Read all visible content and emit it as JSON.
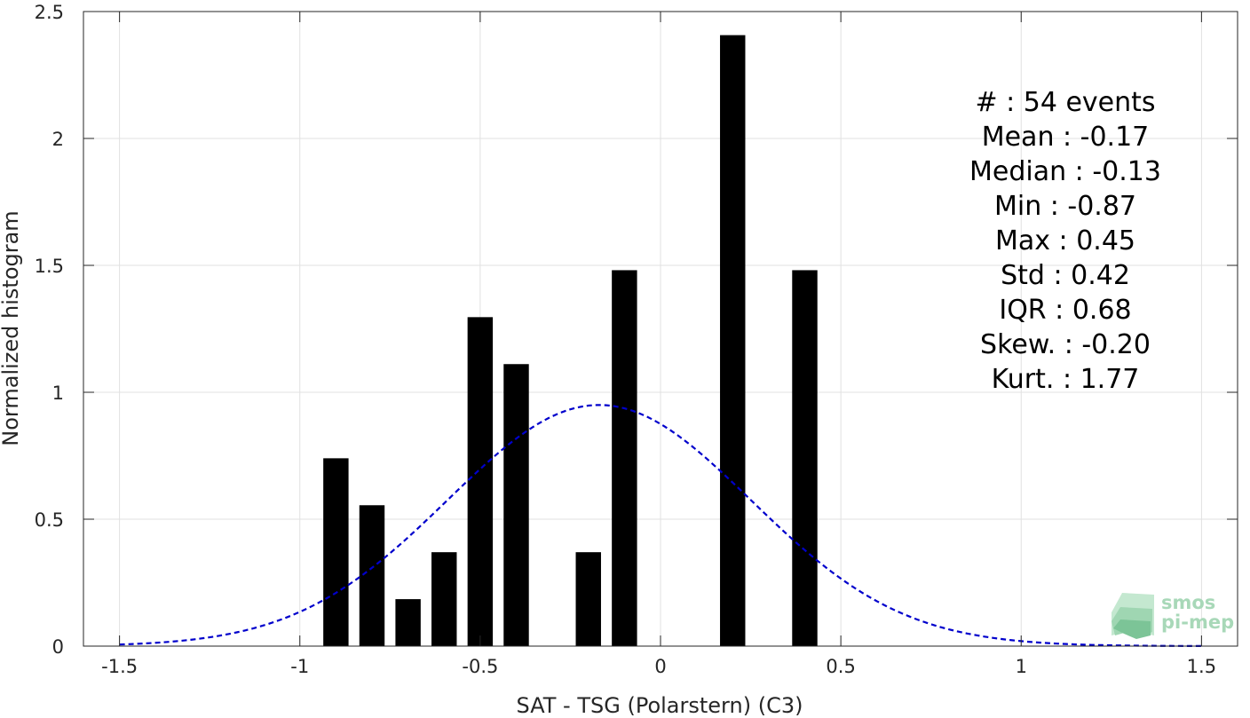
{
  "chart_data": {
    "type": "bar",
    "xlabel": "SAT - TSG (Polarstern) (C3)",
    "ylabel": "Normalized histogram",
    "xlim": [
      -1.6,
      1.6
    ],
    "ylim": [
      0,
      2.5
    ],
    "xticks": [
      -1.5,
      -1,
      -0.5,
      0,
      0.5,
      1,
      1.5
    ],
    "xtick_labels": [
      "-1.5",
      "-1",
      "-0.5",
      "0",
      "0.5",
      "1",
      "1.5"
    ],
    "yticks": [
      0,
      0.5,
      1,
      1.5,
      2,
      2.5
    ],
    "ytick_labels": [
      "0",
      "0.5",
      "1",
      "1.5",
      "2",
      "2.5"
    ],
    "grid": true,
    "bar_width": 0.07,
    "bar_color": "#000000",
    "bars": [
      {
        "x": -0.9,
        "value": 0.74
      },
      {
        "x": -0.8,
        "value": 0.555
      },
      {
        "x": -0.7,
        "value": 0.185
      },
      {
        "x": -0.6,
        "value": 0.37
      },
      {
        "x": -0.5,
        "value": 1.296
      },
      {
        "x": -0.4,
        "value": 1.111
      },
      {
        "x": -0.2,
        "value": 0.37
      },
      {
        "x": -0.1,
        "value": 1.481
      },
      {
        "x": 0.2,
        "value": 2.407
      },
      {
        "x": 0.4,
        "value": 1.481
      }
    ],
    "fit_curve": {
      "style": "dashed",
      "color": "#0000cc",
      "mean": -0.17,
      "std": 0.42,
      "x_range": [
        -1.5,
        1.5
      ]
    },
    "annotations": [
      "#  : 54 events",
      "Mean : -0.17",
      "Median : -0.13",
      "Min : -0.87",
      "Max : 0.45",
      "Std : 0.42",
      "IQR : 0.68",
      "Skew. : -0.20",
      "Kurt. : 1.77"
    ]
  },
  "logo": {
    "line1": "smos",
    "line2": "pi-mep",
    "icon": "wave-stack-icon",
    "color": "#a8d8b8"
  }
}
